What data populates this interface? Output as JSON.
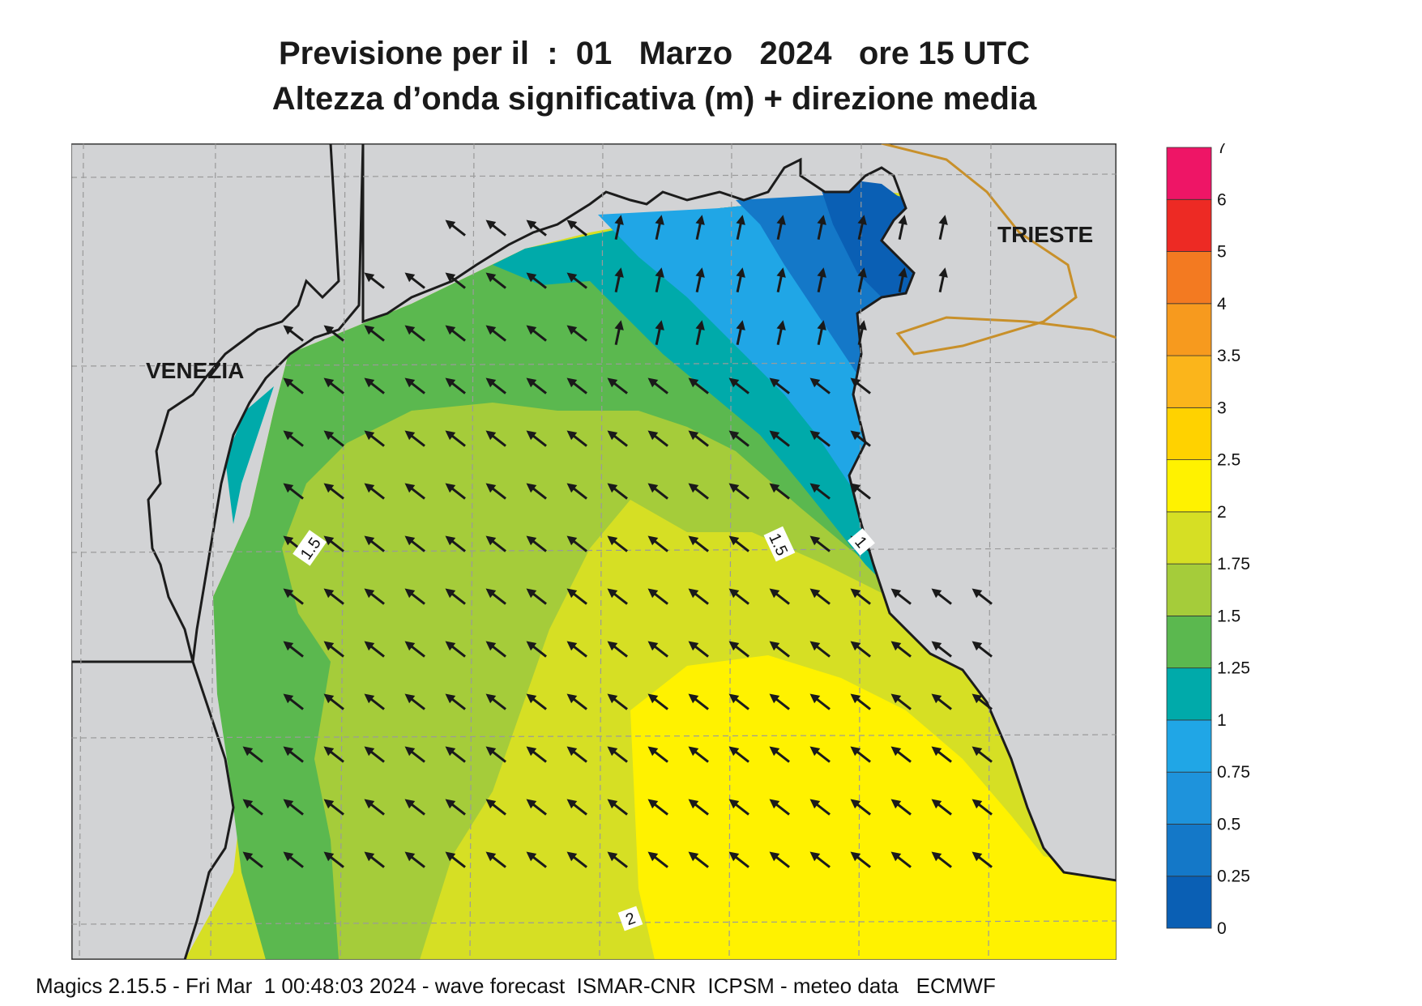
{
  "header": {
    "title": "Previsione per il  :  01   Marzo   2024   ore 15 UTC",
    "subtitle": "Altezza d’onda significativa (m) + direzione media"
  },
  "map": {
    "places": {
      "venezia": "VENEZIA",
      "trieste": "TRIESTE"
    },
    "contour_labels": [
      "1.5",
      "1.5",
      "1",
      "2"
    ],
    "arrow_direction": "north-west",
    "colors": {
      "land": "#d2d3d5",
      "coast": "#1c1c1c",
      "border": "#c8902a",
      "grid": "#9a9a9a"
    }
  },
  "legend": {
    "levels": [
      "0",
      "0.25",
      "0.5",
      "0.75",
      "1",
      "1.25",
      "1.5",
      "1.75",
      "2",
      "2.5",
      "3",
      "3.5",
      "4",
      "5",
      "6",
      "7"
    ],
    "colors": [
      "#0a5fb4",
      "#1478c8",
      "#1e93dc",
      "#20a6e6",
      "#00aaaa",
      "#5bb84f",
      "#a5cc3a",
      "#d6df24",
      "#fff200",
      "#ffd200",
      "#fbb51b",
      "#f79a1e",
      "#f37a21",
      "#ed2a24",
      "#ee1566"
    ]
  },
  "footer": {
    "text": "Magics 2.15.5 - Fri Mar  1 00:48:03 2024 - wave forecast  ISMAR-CNR  ICPSM - meteo data   ECMWF"
  }
}
